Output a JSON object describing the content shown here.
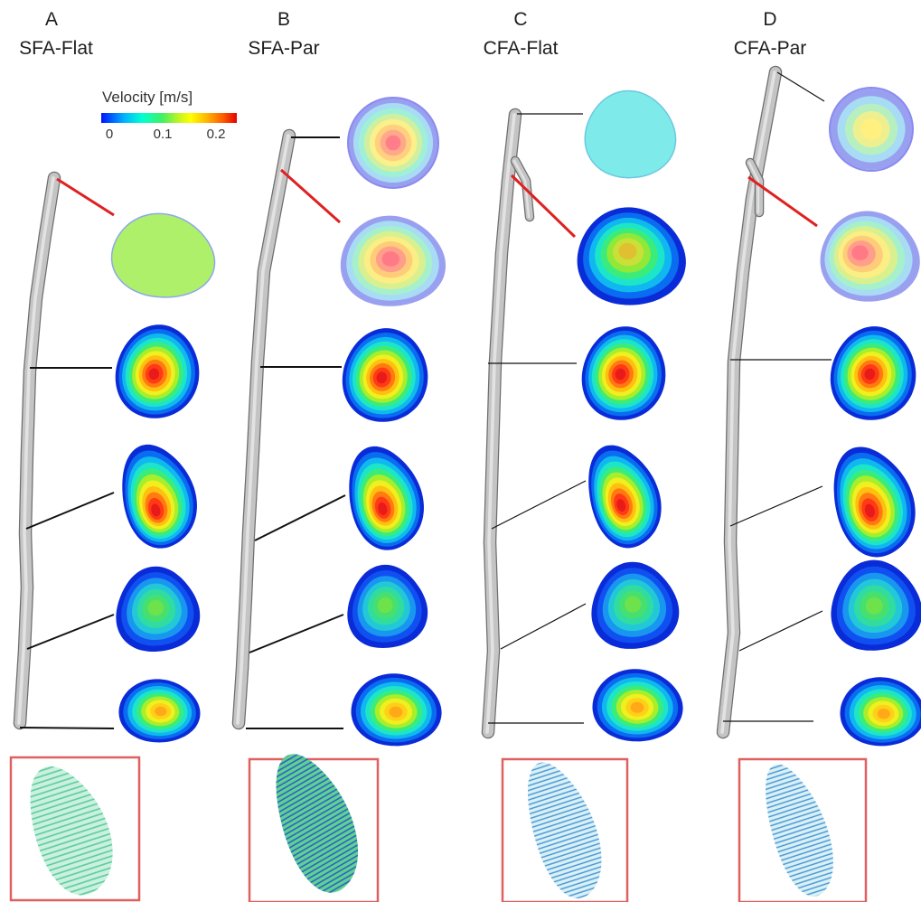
{
  "panels": [
    {
      "letter": "A",
      "name": "SFA-Flat"
    },
    {
      "letter": "B",
      "name": "SFA-Par"
    },
    {
      "letter": "C",
      "name": "CFA-Flat"
    },
    {
      "letter": "D",
      "name": "CFA-Par"
    }
  ],
  "legend": {
    "title": "Velocity [m/s]",
    "ticks": [
      "0",
      "0.1",
      "0.2"
    ]
  },
  "colors": {
    "vessel": "#a9a9a9",
    "inlet_leader": "#e02020",
    "leader": "#111111",
    "inset_border": "#e06060"
  }
}
